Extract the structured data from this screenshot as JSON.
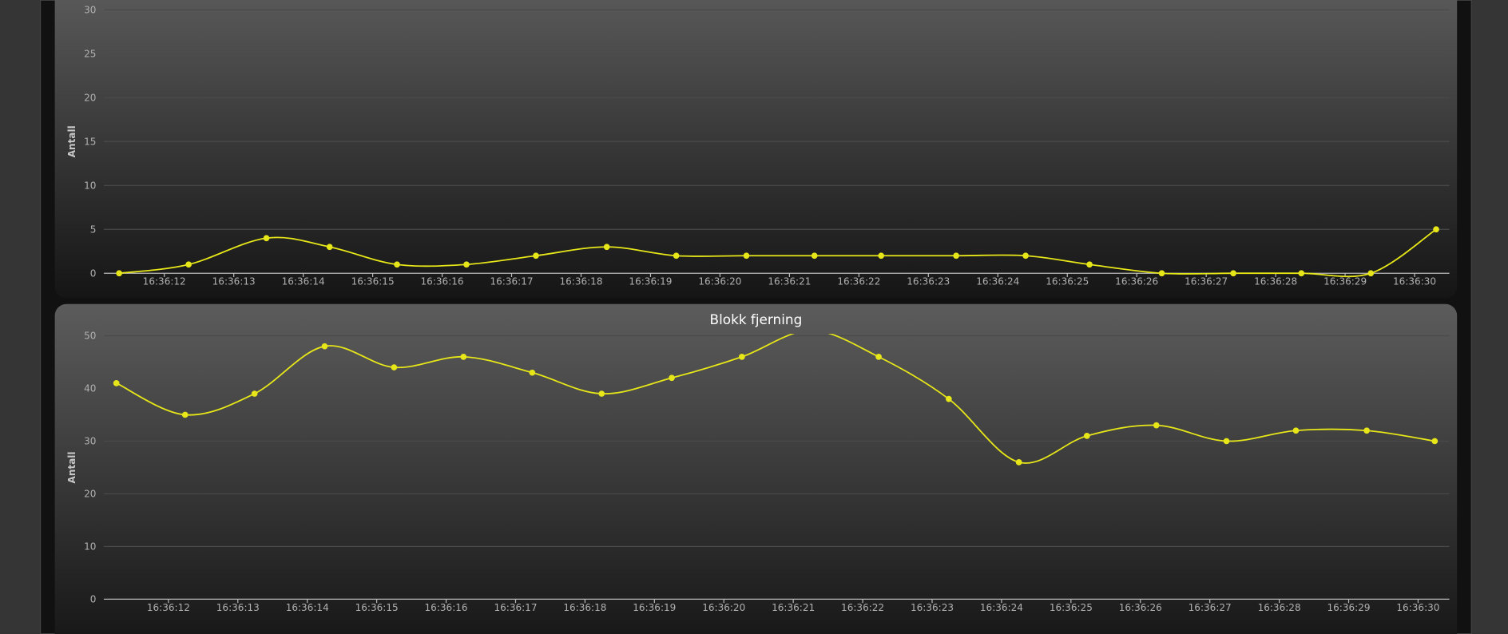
{
  "chart_data": [
    {
      "type": "line",
      "y_label": "Antall",
      "x": [
        "16:36:11.35",
        "16:36:12.35",
        "16:36:13.47",
        "16:36:14.38",
        "16:36:15.35",
        "16:36:16.35",
        "16:36:17.35",
        "16:36:18.37",
        "16:36:19.37",
        "16:36:20.38",
        "16:36:21.36",
        "16:36:22.32",
        "16:36:23.40",
        "16:36:24.40",
        "16:36:25.32",
        "16:36:26.36",
        "16:36:27.39",
        "16:36:28.37",
        "16:36:29.37",
        "16:36:30.31"
      ],
      "series": [
        {
          "color": "#e6e619",
          "values": [
            0,
            1,
            4,
            3,
            1,
            1,
            2,
            3,
            2,
            2,
            2,
            2,
            2,
            2,
            1,
            0,
            0,
            0,
            0,
            5
          ]
        }
      ],
      "xlim": [
        "16:36:11.13",
        "16:36:30.50"
      ],
      "xticks": [
        "16:36:12",
        "16:36:13",
        "16:36:14",
        "16:36:15",
        "16:36:16",
        "16:36:17",
        "16:36:18",
        "16:36:19",
        "16:36:20",
        "16:36:21",
        "16:36:22",
        "16:36:23",
        "16:36:24",
        "16:36:25",
        "16:36:26",
        "16:36:27",
        "16:36:28",
        "16:36:29",
        "16:36:30"
      ],
      "ylim": [
        0,
        30
      ],
      "yticks": [
        0,
        5,
        10,
        15,
        20,
        25,
        30
      ],
      "grid": true
    },
    {
      "type": "line",
      "title": "Blokk fjerning",
      "y_label": "Antall",
      "x": [
        "16:36:11.25",
        "16:36:12.24",
        "16:36:13.24",
        "16:36:14.25",
        "16:36:15.25",
        "16:36:16.25",
        "16:36:17.24",
        "16:36:18.24",
        "16:36:19.25",
        "16:36:20.26",
        "16:36:21.25",
        "16:36:22.23",
        "16:36:23.24",
        "16:36:24.25",
        "16:36:25.23",
        "16:36:26.23",
        "16:36:27.24",
        "16:36:28.24",
        "16:36:29.26",
        "16:36:30.24"
      ],
      "series": [
        {
          "color": "#e6e619",
          "values": [
            41,
            35,
            39,
            48,
            44,
            46,
            43,
            39,
            42,
            46,
            51,
            46,
            38,
            26,
            31,
            33,
            30,
            32,
            32,
            30
          ]
        }
      ],
      "xlim": [
        "16:36:11.07",
        "16:36:30.45"
      ],
      "xticks": [
        "16:36:12",
        "16:36:13",
        "16:36:14",
        "16:36:15",
        "16:36:16",
        "16:36:17",
        "16:36:18",
        "16:36:19",
        "16:36:20",
        "16:36:21",
        "16:36:22",
        "16:36:23",
        "16:36:24",
        "16:36:25",
        "16:36:26",
        "16:36:27",
        "16:36:28",
        "16:36:29",
        "16:36:30"
      ],
      "ylim": [
        0,
        50
      ],
      "yticks": [
        0,
        10,
        20,
        30,
        40,
        50
      ],
      "grid": true
    }
  ]
}
